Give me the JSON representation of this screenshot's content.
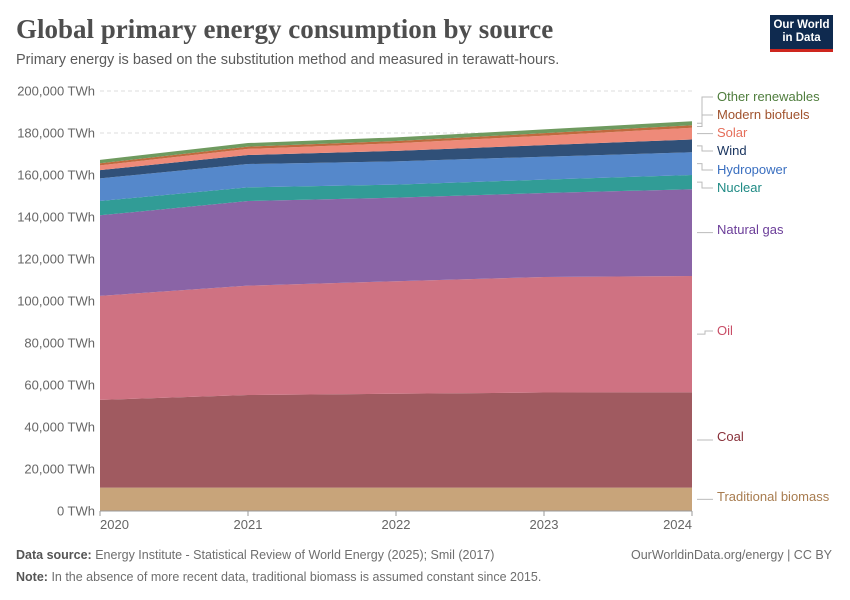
{
  "header": {
    "title": "Global primary energy consumption by source",
    "subtitle": "Primary energy is based on the substitution method and measured in terawatt-hours.",
    "logo": "Our World in Data"
  },
  "footer": {
    "source_label": "Data source:",
    "source": "Energy Institute - Statistical Review of World Energy (2025); Smil (2017)",
    "url": "OurWorldinData.org/energy | CC BY",
    "note_label": "Note:",
    "note": "In the absence of more recent data, traditional biomass is assumed constant since 2015."
  },
  "chart_data": {
    "type": "area",
    "stacked": true,
    "x": [
      2020,
      2021,
      2022,
      2023,
      2024
    ],
    "ylim": [
      0,
      200000
    ],
    "yticks": [
      0,
      20000,
      40000,
      60000,
      80000,
      100000,
      120000,
      140000,
      160000,
      180000,
      200000
    ],
    "ytick_labels": [
      "0 TWh",
      "20,000 TWh",
      "40,000 TWh",
      "60,000 TWh",
      "80,000 TWh",
      "100,000 TWh",
      "120,000 TWh",
      "140,000 TWh",
      "160,000 TWh",
      "180,000 TWh",
      "200,000 TWh"
    ],
    "xtick_labels": [
      "2020",
      "2021",
      "2022",
      "2023",
      "2024"
    ],
    "grid": "horizontal dashed",
    "legend": "right, inline labels",
    "series": [
      {
        "name": "Traditional biomass",
        "color": "#c8a47a",
        "label_color": "#a87c4f",
        "values": [
          11111,
          11111,
          11111,
          11111,
          11111
        ]
      },
      {
        "name": "Coal",
        "color": "#a05a60",
        "label_color": "#883039",
        "values": [
          41800,
          44100,
          44700,
          45300,
          45400
        ]
      },
      {
        "name": "Oil",
        "color": "#cf7282",
        "label_color": "#c94d66",
        "values": [
          49500,
          52100,
          53600,
          55000,
          55400
        ]
      },
      {
        "name": "Natural gas",
        "color": "#8a64a6",
        "label_color": "#6b3d99",
        "values": [
          38400,
          40300,
          39800,
          40000,
          41300
        ]
      },
      {
        "name": "Nuclear",
        "color": "#319c96",
        "label_color": "#1e8a84",
        "values": [
          6800,
          6500,
          6200,
          6400,
          6800
        ]
      },
      {
        "name": "Hydropower",
        "color": "#5588cb",
        "label_color": "#3a6fc0",
        "values": [
          10800,
          11100,
          11100,
          10900,
          10800
        ]
      },
      {
        "name": "Wind",
        "color": "#305078",
        "label_color": "#1a3560",
        "values": [
          3900,
          4300,
          5000,
          5500,
          6100
        ]
      },
      {
        "name": "Solar",
        "color": "#ee8a79",
        "label_color": "#e56e5a",
        "values": [
          2300,
          2900,
          3600,
          4500,
          5600
        ]
      },
      {
        "name": "Modern biofuels",
        "color": "#c06a3e",
        "label_color": "#a0522d",
        "values": [
          1000,
          1100,
          1100,
          1200,
          1200
        ]
      },
      {
        "name": "Other renewables",
        "color": "#6f9a5f",
        "label_color": "#4f7d3d",
        "values": [
          1600,
          1700,
          1700,
          1800,
          1900
        ]
      }
    ]
  }
}
